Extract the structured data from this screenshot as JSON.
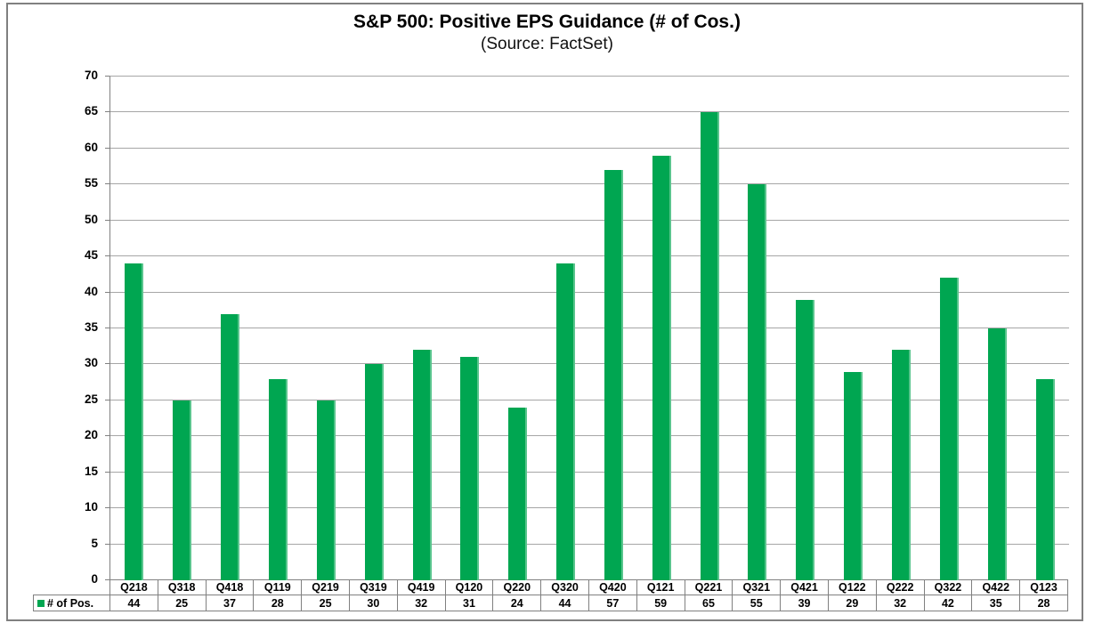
{
  "window": {
    "background": "#ffffff",
    "frame_border_color": "#808080"
  },
  "chart_data": {
    "type": "bar",
    "title": "S&P 500: Positive EPS Guidance (# of Cos.)",
    "subtitle": "(Source: FactSet)",
    "categories": [
      "Q218",
      "Q318",
      "Q418",
      "Q119",
      "Q219",
      "Q319",
      "Q419",
      "Q120",
      "Q220",
      "Q320",
      "Q420",
      "Q121",
      "Q221",
      "Q321",
      "Q421",
      "Q122",
      "Q222",
      "Q322",
      "Q422",
      "Q123"
    ],
    "series": [
      {
        "name": "# of Pos.",
        "values": [
          44,
          25,
          37,
          28,
          25,
          30,
          32,
          31,
          24,
          44,
          57,
          59,
          65,
          55,
          39,
          29,
          32,
          42,
          35,
          28
        ]
      }
    ],
    "xlabel": "",
    "ylabel": "",
    "ylim": [
      0,
      70
    ],
    "ytick_step": 5,
    "grid": "horizontal",
    "legend_position": "bottom-left-data-table",
    "data_table_shown": true,
    "colors": {
      "bar": "#00A651",
      "gridline": "#A6A6A6",
      "axis": "#808080",
      "table_border": "#808080",
      "text": "#000000"
    }
  }
}
